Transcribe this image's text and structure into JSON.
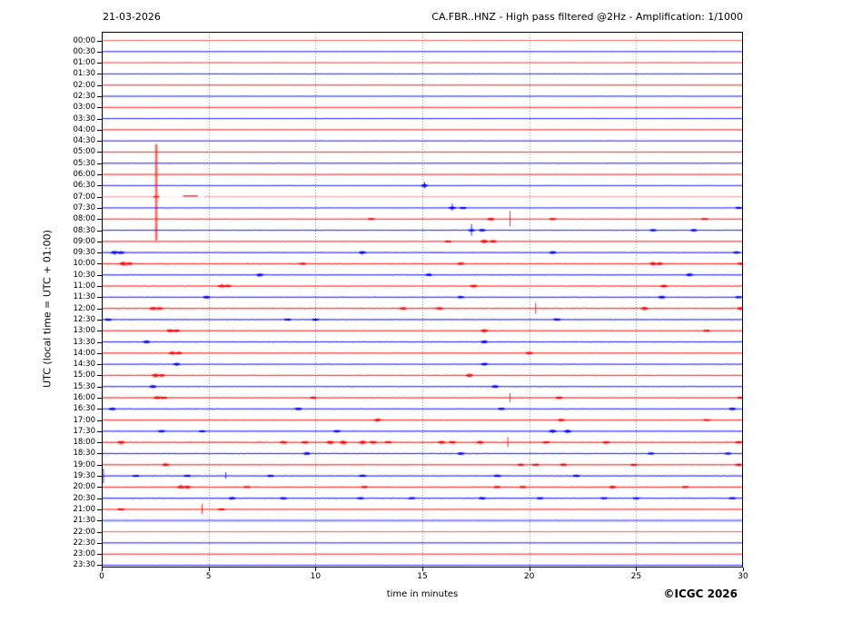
{
  "chart_data": {
    "type": "line",
    "subtype": "helicorder-seismogram",
    "title_left": "21-03-2026",
    "title_right": "CA.FBR..HNZ - High pass filtered @2Hz - Amplification: 1/1000",
    "ylabel": "UTC (local time = UTC + 01:00)",
    "xlabel": "time in minutes",
    "copyright": "©ICGC 2026",
    "x_range": [
      0,
      30
    ],
    "x_ticks": [
      0,
      5,
      10,
      15,
      20,
      25,
      30
    ],
    "grid_minutes": [
      5,
      10,
      15,
      20,
      25
    ],
    "row_interval_minutes": 30,
    "colors": {
      "red": "#ff0000",
      "blue": "#0000ff",
      "grid": "#888888",
      "frame": "#000000",
      "background": "#ffffff"
    },
    "legend": "rows alternate red (on the hour) and blue (on the half hour); bursts = [minute, amplitude_px]; spikes = [minute, up_px, down_px, wide_flag]",
    "rows": [
      {
        "label": "00:00",
        "color": "red",
        "noise": 0.35,
        "pale": 0.7
      },
      {
        "label": "00:30",
        "color": "blue",
        "noise": 0.5
      },
      {
        "label": "01:00",
        "color": "red",
        "noise": 0.55,
        "pale": 0.85
      },
      {
        "label": "01:30",
        "color": "blue",
        "noise": 0.6
      },
      {
        "label": "02:00",
        "color": "red",
        "noise": 0.5
      },
      {
        "label": "02:30",
        "color": "blue",
        "noise": 0.55
      },
      {
        "label": "03:00",
        "color": "red",
        "noise": 0.45
      },
      {
        "label": "03:30",
        "color": "blue",
        "noise": 0.5
      },
      {
        "label": "04:00",
        "color": "red",
        "noise": 0.55
      },
      {
        "label": "04:30",
        "color": "blue",
        "noise": 0.55
      },
      {
        "label": "05:00",
        "color": "red",
        "noise": 0.55
      },
      {
        "label": "05:30",
        "color": "blue",
        "noise": 0.65
      },
      {
        "label": "06:00",
        "color": "red",
        "noise": 0.55
      },
      {
        "label": "06:30",
        "color": "blue",
        "noise": 0.55,
        "bursts": [
          [
            15.1,
            2.2
          ]
        ],
        "spikes": [
          [
            15.1,
            4,
            3
          ]
        ]
      },
      {
        "label": "07:00",
        "color": "red",
        "noise": 0.3,
        "pale": 0.45,
        "segments": [
          [
            0,
            2.7
          ],
          [
            4.8,
            30
          ]
        ],
        "dark_segment": [
          3.8,
          4.5
        ],
        "bursts": [
          [
            2.55,
            1.5
          ]
        ],
        "spikes": [
          [
            2.55,
            58,
            48,
            1
          ]
        ]
      },
      {
        "label": "07:30",
        "color": "blue",
        "noise": 0.6,
        "bursts": [
          [
            16.4,
            2.0
          ],
          [
            16.9,
            1.2
          ],
          [
            29.8,
            1.3
          ]
        ],
        "spikes": [
          [
            16.4,
            5,
            3
          ]
        ]
      },
      {
        "label": "08:00",
        "color": "red",
        "noise": 0.7,
        "bursts": [
          [
            12.6,
            1.0
          ],
          [
            18.2,
            1.8
          ],
          [
            21.1,
            1.2
          ],
          [
            28.2,
            0.9
          ]
        ],
        "spikes": [
          [
            19.1,
            9,
            8
          ]
        ]
      },
      {
        "label": "08:30",
        "color": "blue",
        "noise": 0.7,
        "bursts": [
          [
            17.3,
            1.5
          ],
          [
            17.8,
            1.6
          ],
          [
            25.8,
            1.2
          ],
          [
            27.7,
            1.4
          ]
        ],
        "spikes": [
          [
            17.3,
            7,
            6
          ]
        ]
      },
      {
        "label": "09:00",
        "color": "red",
        "noise": 0.7,
        "bursts": [
          [
            16.2,
            1.0
          ],
          [
            17.9,
            2.4
          ],
          [
            18.3,
            1.8
          ]
        ]
      },
      {
        "label": "09:30",
        "color": "blue",
        "noise": 0.85,
        "bursts": [
          [
            0.6,
            2.2
          ],
          [
            0.9,
            1.8
          ],
          [
            12.2,
            1.8
          ],
          [
            21.1,
            1.8
          ],
          [
            29.7,
            1.2
          ]
        ]
      },
      {
        "label": "10:00",
        "color": "red",
        "noise": 0.95,
        "bursts": [
          [
            1.0,
            2.2
          ],
          [
            1.3,
            1.6
          ],
          [
            9.4,
            1.2
          ],
          [
            16.8,
            1.4
          ],
          [
            25.8,
            2.0
          ],
          [
            26.1,
            1.5
          ],
          [
            29.9,
            1.4
          ]
        ]
      },
      {
        "label": "10:30",
        "color": "blue",
        "noise": 0.85,
        "bursts": [
          [
            7.4,
            2.0
          ],
          [
            15.3,
            1.6
          ],
          [
            27.5,
            1.8
          ]
        ]
      },
      {
        "label": "11:00",
        "color": "red",
        "noise": 0.85,
        "bursts": [
          [
            5.6,
            2.0
          ],
          [
            5.9,
            1.5
          ],
          [
            17.4,
            1.8
          ],
          [
            26.3,
            1.6
          ]
        ]
      },
      {
        "label": "11:30",
        "color": "blue",
        "noise": 0.85,
        "bursts": [
          [
            4.9,
            1.8
          ],
          [
            16.8,
            1.4
          ],
          [
            26.2,
            1.6
          ],
          [
            29.8,
            1.2
          ]
        ]
      },
      {
        "label": "12:00",
        "color": "red",
        "noise": 1.0,
        "bursts": [
          [
            2.4,
            1.8
          ],
          [
            2.7,
            1.4
          ],
          [
            14.1,
            1.4
          ],
          [
            15.8,
            1.4
          ],
          [
            25.4,
            1.7
          ],
          [
            29.9,
            1.6
          ]
        ],
        "spikes": [
          [
            20.3,
            6,
            6
          ]
        ]
      },
      {
        "label": "12:30",
        "color": "blue",
        "noise": 0.85,
        "bursts": [
          [
            0.3,
            1.5
          ],
          [
            8.7,
            1.2
          ],
          [
            10.0,
            1.1
          ],
          [
            21.3,
            1.8
          ]
        ]
      },
      {
        "label": "13:00",
        "color": "red",
        "noise": 0.85,
        "bursts": [
          [
            3.2,
            2.0
          ],
          [
            3.5,
            1.6
          ],
          [
            17.9,
            2.0
          ],
          [
            28.3,
            1.0
          ]
        ]
      },
      {
        "label": "13:30",
        "color": "blue",
        "noise": 0.85,
        "bursts": [
          [
            2.1,
            1.8
          ],
          [
            17.9,
            1.8
          ]
        ]
      },
      {
        "label": "14:00",
        "color": "red",
        "noise": 0.85,
        "bursts": [
          [
            3.3,
            2.0
          ],
          [
            3.6,
            1.5
          ],
          [
            20.0,
            1.7
          ]
        ]
      },
      {
        "label": "14:30",
        "color": "blue",
        "noise": 0.85,
        "bursts": [
          [
            3.5,
            1.8
          ],
          [
            17.9,
            1.8
          ]
        ]
      },
      {
        "label": "15:00",
        "color": "red",
        "noise": 0.85,
        "bursts": [
          [
            2.5,
            2.0
          ],
          [
            2.8,
            1.5
          ],
          [
            17.2,
            1.8
          ]
        ]
      },
      {
        "label": "15:30",
        "color": "blue",
        "noise": 0.8,
        "bursts": [
          [
            2.4,
            1.8
          ],
          [
            18.4,
            1.6
          ]
        ]
      },
      {
        "label": "16:00",
        "color": "red",
        "noise": 0.9,
        "bursts": [
          [
            2.6,
            2.0
          ],
          [
            2.9,
            1.5
          ],
          [
            9.9,
            1.1
          ],
          [
            21.4,
            1.6
          ],
          [
            29.9,
            1.2
          ]
        ],
        "spikes": [
          [
            19.1,
            5,
            5
          ]
        ]
      },
      {
        "label": "16:30",
        "color": "blue",
        "noise": 0.85,
        "bursts": [
          [
            0.5,
            1.7
          ],
          [
            9.2,
            1.7
          ],
          [
            18.7,
            1.4
          ],
          [
            29.5,
            1.6
          ]
        ]
      },
      {
        "label": "17:00",
        "color": "red",
        "noise": 0.8,
        "bursts": [
          [
            12.9,
            1.9
          ],
          [
            21.5,
            1.6
          ],
          [
            28.3,
            0.9
          ]
        ]
      },
      {
        "label": "17:30",
        "color": "blue",
        "noise": 0.85,
        "bursts": [
          [
            2.8,
            1.4
          ],
          [
            4.7,
            1.0
          ],
          [
            11.0,
            1.4
          ],
          [
            21.1,
            2.0
          ],
          [
            21.8,
            2.0
          ]
        ]
      },
      {
        "label": "18:00",
        "color": "red",
        "noise": 1.1,
        "bursts": [
          [
            0.9,
            1.7
          ],
          [
            8.5,
            1.4
          ],
          [
            9.5,
            1.4
          ],
          [
            10.7,
            2.2
          ],
          [
            11.3,
            2.2
          ],
          [
            12.2,
            2.0
          ],
          [
            12.7,
            1.6
          ],
          [
            13.4,
            1.4
          ],
          [
            15.9,
            1.7
          ],
          [
            16.4,
            1.4
          ],
          [
            17.7,
            1.6
          ],
          [
            20.8,
            1.2
          ],
          [
            23.6,
            1.4
          ],
          [
            29.8,
            1.5
          ]
        ],
        "spikes": [
          [
            19.0,
            6,
            5
          ]
        ]
      },
      {
        "label": "18:30",
        "color": "blue",
        "noise": 0.85,
        "bursts": [
          [
            9.6,
            1.7
          ],
          [
            16.8,
            1.4
          ],
          [
            25.7,
            1.1
          ],
          [
            29.3,
            1.2
          ]
        ]
      },
      {
        "label": "19:00",
        "color": "red",
        "noise": 0.85,
        "bursts": [
          [
            3.0,
            1.7
          ],
          [
            19.6,
            1.2
          ],
          [
            20.3,
            1.2
          ],
          [
            21.6,
            1.4
          ],
          [
            24.9,
            1.1
          ],
          [
            29.8,
            1.6
          ]
        ]
      },
      {
        "label": "19:30",
        "color": "blue",
        "noise": 0.95,
        "bursts": [
          [
            1.6,
            1.1
          ],
          [
            4.0,
            1.3
          ],
          [
            7.9,
            1.1
          ],
          [
            12.2,
            1.4
          ],
          [
            18.5,
            1.3
          ],
          [
            22.2,
            1.2
          ]
        ],
        "spikes": [
          [
            0.08,
            8,
            8
          ],
          [
            5.8,
            4,
            3
          ]
        ]
      },
      {
        "label": "20:00",
        "color": "red",
        "noise": 0.85,
        "bursts": [
          [
            3.7,
            2.0
          ],
          [
            4.0,
            1.8
          ],
          [
            6.8,
            0.9
          ],
          [
            12.3,
            0.9
          ],
          [
            18.5,
            1.3
          ],
          [
            19.7,
            1.4
          ],
          [
            23.9,
            1.6
          ],
          [
            27.3,
            1.0
          ]
        ]
      },
      {
        "label": "20:30",
        "color": "blue",
        "noise": 0.95,
        "bursts": [
          [
            6.1,
            1.4
          ],
          [
            8.5,
            1.4
          ],
          [
            12.1,
            1.2
          ],
          [
            14.5,
            1.1
          ],
          [
            17.8,
            1.5
          ],
          [
            20.5,
            1.1
          ],
          [
            23.5,
            1.1
          ],
          [
            25.0,
            1.1
          ],
          [
            29.5,
            1.0
          ]
        ]
      },
      {
        "label": "21:00",
        "color": "red",
        "noise": 0.7,
        "bursts": [
          [
            0.9,
            1.2
          ],
          [
            5.6,
            1.2
          ]
        ],
        "spikes": [
          [
            4.7,
            6,
            5
          ]
        ]
      },
      {
        "label": "21:30",
        "color": "blue",
        "noise": 0.9,
        "pale": 0.5,
        "band": 1.6
      },
      {
        "label": "22:00",
        "color": "red",
        "noise": 0.45,
        "pale": 0.75
      },
      {
        "label": "22:30",
        "color": "blue",
        "noise": 0.5
      },
      {
        "label": "23:00",
        "color": "red",
        "noise": 0.4
      },
      {
        "label": "23:30",
        "color": "blue",
        "noise": 0.5
      }
    ]
  }
}
